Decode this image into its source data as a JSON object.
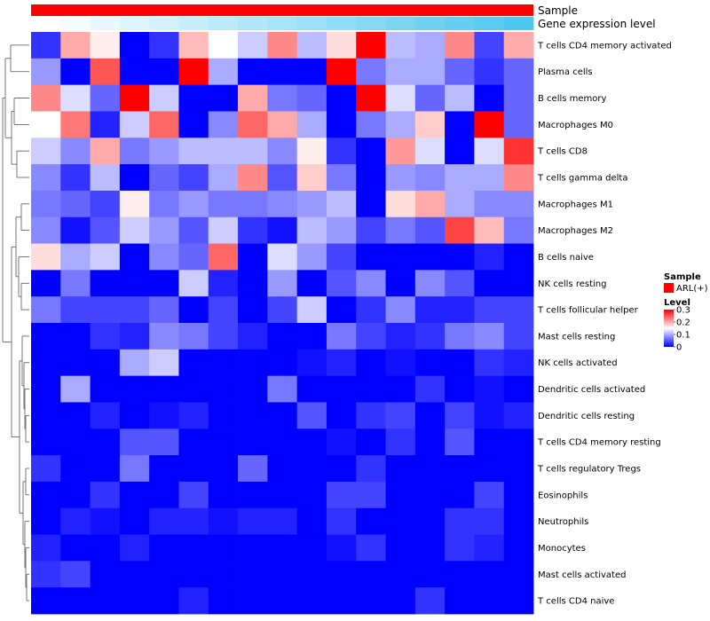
{
  "chart_data": {
    "type": "heatmap",
    "title": "",
    "annotations": [
      {
        "name": "Sample",
        "legend_entry": "ARL(+)",
        "color": "#ff0000"
      },
      {
        "name": "Gene expression level",
        "gradient": [
          "#ffffff",
          "#4fc8f0"
        ]
      }
    ],
    "rows": [
      "T cells CD4 memory activated",
      "Plasma cells",
      "B cells memory",
      "Macrophages M0",
      "T cells CD8",
      "T cells gamma delta",
      "Macrophages M1",
      "Macrophages M2",
      "B cells naive",
      "NK cells resting",
      "T cells follicular helper",
      "Mast cells resting",
      "NK cells activated",
      "Dendritic cells activated",
      "Dendritic cells resting",
      "T cells CD4 memory resting",
      "T cells regulatory  Tregs",
      "Eosinophils",
      "Neutrophils",
      "Monocytes",
      "Mast cells activated",
      "T cells CD4 naive"
    ],
    "n_columns": 17,
    "values": [
      [
        0.03,
        0.2,
        0.16,
        0.0,
        0.03,
        0.19,
        0.15,
        0.12,
        0.22,
        0.11,
        0.17,
        0.3,
        0.11,
        0.1,
        0.22,
        0.04,
        0.2
      ],
      [
        0.09,
        0.0,
        0.25,
        0.0,
        0.0,
        0.3,
        0.1,
        0.0,
        0.0,
        0.0,
        0.3,
        0.07,
        0.1,
        0.1,
        0.06,
        0.03,
        0.06
      ],
      [
        0.22,
        0.13,
        0.06,
        0.3,
        0.12,
        0.0,
        0.0,
        0.2,
        0.07,
        0.06,
        0.0,
        0.3,
        0.13,
        0.06,
        0.11,
        0.0,
        0.06
      ],
      [
        0.15,
        0.23,
        0.02,
        0.12,
        0.24,
        0.0,
        0.08,
        0.24,
        0.2,
        0.1,
        0.0,
        0.07,
        0.1,
        0.18,
        0.0,
        0.3,
        0.06
      ],
      [
        0.12,
        0.08,
        0.2,
        0.07,
        0.09,
        0.11,
        0.11,
        0.11,
        0.08,
        0.16,
        0.03,
        0.0,
        0.21,
        0.13,
        0.0,
        0.13,
        0.27
      ],
      [
        0.08,
        0.03,
        0.11,
        0.0,
        0.06,
        0.04,
        0.1,
        0.22,
        0.05,
        0.18,
        0.07,
        0.0,
        0.09,
        0.08,
        0.1,
        0.1,
        0.22
      ],
      [
        0.07,
        0.06,
        0.04,
        0.16,
        0.07,
        0.09,
        0.07,
        0.07,
        0.08,
        0.09,
        0.11,
        0.0,
        0.17,
        0.2,
        0.1,
        0.08,
        0.08
      ],
      [
        0.08,
        0.01,
        0.05,
        0.12,
        0.09,
        0.05,
        0.12,
        0.03,
        0.01,
        0.11,
        0.09,
        0.04,
        0.07,
        0.05,
        0.26,
        0.19,
        0.07
      ],
      [
        0.17,
        0.1,
        0.12,
        0.0,
        0.08,
        0.06,
        0.24,
        0.0,
        0.13,
        0.09,
        0.04,
        0.0,
        0.0,
        0.0,
        0.0,
        0.02,
        0.0
      ],
      [
        0.0,
        0.07,
        0.0,
        0.0,
        0.0,
        0.12,
        0.02,
        0.0,
        0.09,
        0.0,
        0.05,
        0.08,
        0.0,
        0.08,
        0.05,
        0.0,
        0.0
      ],
      [
        0.07,
        0.04,
        0.04,
        0.04,
        0.06,
        0.0,
        0.04,
        0.0,
        0.04,
        0.12,
        0.0,
        0.03,
        0.08,
        0.02,
        0.02,
        0.04,
        0.04
      ],
      [
        0.0,
        0.0,
        0.03,
        0.02,
        0.08,
        0.07,
        0.04,
        0.02,
        0.0,
        0.0,
        0.07,
        0.04,
        0.02,
        0.03,
        0.07,
        0.08,
        0.04
      ],
      [
        0.0,
        0.0,
        0.0,
        0.1,
        0.12,
        0.0,
        0.0,
        0.0,
        0.0,
        0.01,
        0.02,
        0.0,
        0.01,
        0.0,
        0.0,
        0.03,
        0.02
      ],
      [
        0.0,
        0.1,
        0.0,
        0.0,
        0.0,
        0.0,
        0.0,
        0.0,
        0.07,
        0.0,
        0.0,
        0.0,
        0.0,
        0.03,
        0.0,
        0.01,
        0.0
      ],
      [
        0.0,
        0.0,
        0.02,
        0.0,
        0.01,
        0.02,
        0.0,
        0.0,
        0.0,
        0.05,
        0.0,
        0.03,
        0.04,
        0.0,
        0.04,
        0.01,
        0.02
      ],
      [
        0.0,
        0.0,
        0.0,
        0.05,
        0.05,
        0.0,
        0.0,
        0.0,
        0.0,
        0.0,
        0.01,
        0.0,
        0.03,
        0.0,
        0.05,
        0.0,
        0.0
      ],
      [
        0.03,
        0.0,
        0.0,
        0.07,
        0.0,
        0.0,
        0.0,
        0.06,
        0.0,
        0.0,
        0.0,
        0.03,
        0.0,
        0.0,
        0.0,
        0.0,
        0.0
      ],
      [
        0.0,
        0.0,
        0.03,
        0.0,
        0.0,
        0.04,
        0.0,
        0.0,
        0.0,
        0.0,
        0.04,
        0.04,
        0.0,
        0.0,
        0.0,
        0.04,
        0.0
      ],
      [
        0.0,
        0.02,
        0.01,
        0.0,
        0.02,
        0.02,
        0.01,
        0.02,
        0.02,
        0.0,
        0.03,
        0.0,
        0.0,
        0.0,
        0.03,
        0.03,
        0.0
      ],
      [
        0.02,
        0.0,
        0.0,
        0.02,
        0.0,
        0.0,
        0.0,
        0.0,
        0.0,
        0.0,
        0.01,
        0.03,
        0.0,
        0.0,
        0.03,
        0.02,
        0.0
      ],
      [
        0.03,
        0.04,
        0.0,
        0.0,
        0.0,
        0.0,
        0.0,
        0.0,
        0.0,
        0.0,
        0.0,
        0.0,
        0.0,
        0.0,
        0.0,
        0.0,
        0.0
      ],
      [
        0.0,
        0.0,
        0.0,
        0.0,
        0.0,
        0.02,
        0.0,
        0.0,
        0.0,
        0.0,
        0.0,
        0.0,
        0.0,
        0.03,
        0.0,
        0.0,
        0.0
      ]
    ],
    "color_scale": {
      "name": "Level",
      "min": 0,
      "max": 0.3,
      "ticks": [
        0,
        0.1,
        0.2,
        0.3
      ],
      "colors": [
        "#0000ff",
        "#ffffff",
        "#ff0000"
      ]
    },
    "legends": {
      "sample_title": "Sample",
      "sample_label": "ARL(+)",
      "level_title": "Level"
    },
    "row_dendrogram": true,
    "legend_position": "right"
  }
}
